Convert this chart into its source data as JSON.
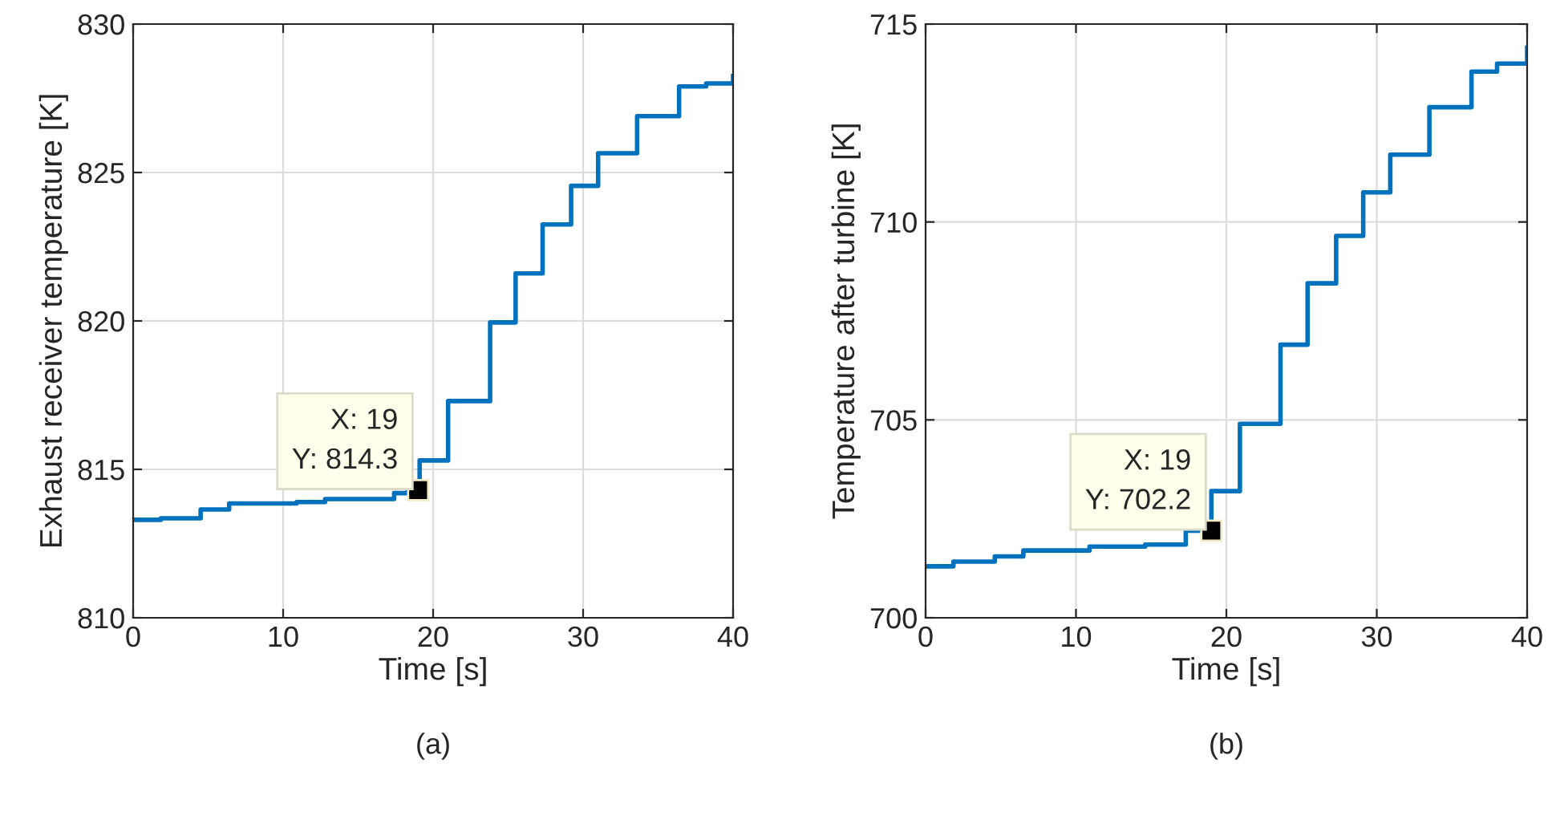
{
  "chart_data": [
    {
      "type": "step",
      "xlabel": "Time [s]",
      "ylabel": "Exhaust receiver temperature [K]",
      "xlim": [
        0,
        40
      ],
      "ylim": [
        810,
        830
      ],
      "xticks": [
        0,
        10,
        20,
        30,
        40
      ],
      "yticks": [
        810,
        815,
        820,
        825,
        830
      ],
      "grid": true,
      "series": [
        {
          "color": "#0072bd",
          "x": [
            0,
            1.85,
            4.5,
            6.4,
            10.9,
            12.8,
            17.4,
            18.3,
            19.1,
            21.0,
            23.8,
            25.5,
            27.3,
            29.2,
            31.0,
            33.6,
            36.4,
            38.2,
            40
          ],
          "values": [
            813.3,
            813.35,
            813.65,
            813.85,
            813.9,
            814.0,
            814.2,
            814.3,
            815.3,
            817.3,
            819.95,
            821.6,
            823.25,
            824.55,
            825.65,
            826.9,
            827.9,
            828.0,
            828.25
          ]
        }
      ],
      "annotations": [
        {
          "text": "X: 19\nY: 814.3",
          "x": 19,
          "y": 814.3
        },
        "(a)"
      ]
    },
    {
      "type": "step",
      "xlabel": "Time [s]",
      "ylabel": "Temperature after turbine [K]",
      "xlim": [
        0,
        40
      ],
      "ylim": [
        700,
        715
      ],
      "xticks": [
        0,
        10,
        20,
        30,
        40
      ],
      "yticks": [
        700,
        705,
        710,
        715
      ],
      "grid": true,
      "series": [
        {
          "color": "#0072bd",
          "x": [
            0,
            1.85,
            4.6,
            6.5,
            10.9,
            14.6,
            17.3,
            19.0,
            20.9,
            23.6,
            25.4,
            27.3,
            29.1,
            30.9,
            33.5,
            36.3,
            38.0,
            40
          ],
          "values": [
            701.3,
            701.42,
            701.55,
            701.7,
            701.8,
            701.85,
            702.2,
            703.2,
            704.9,
            706.9,
            708.45,
            709.65,
            710.75,
            711.7,
            712.9,
            713.8,
            714.0,
            714.4
          ]
        }
      ],
      "annotations": [
        {
          "text": "X: 19\nY: 702.2",
          "x": 19,
          "y": 702.2
        },
        "(b)"
      ]
    }
  ]
}
